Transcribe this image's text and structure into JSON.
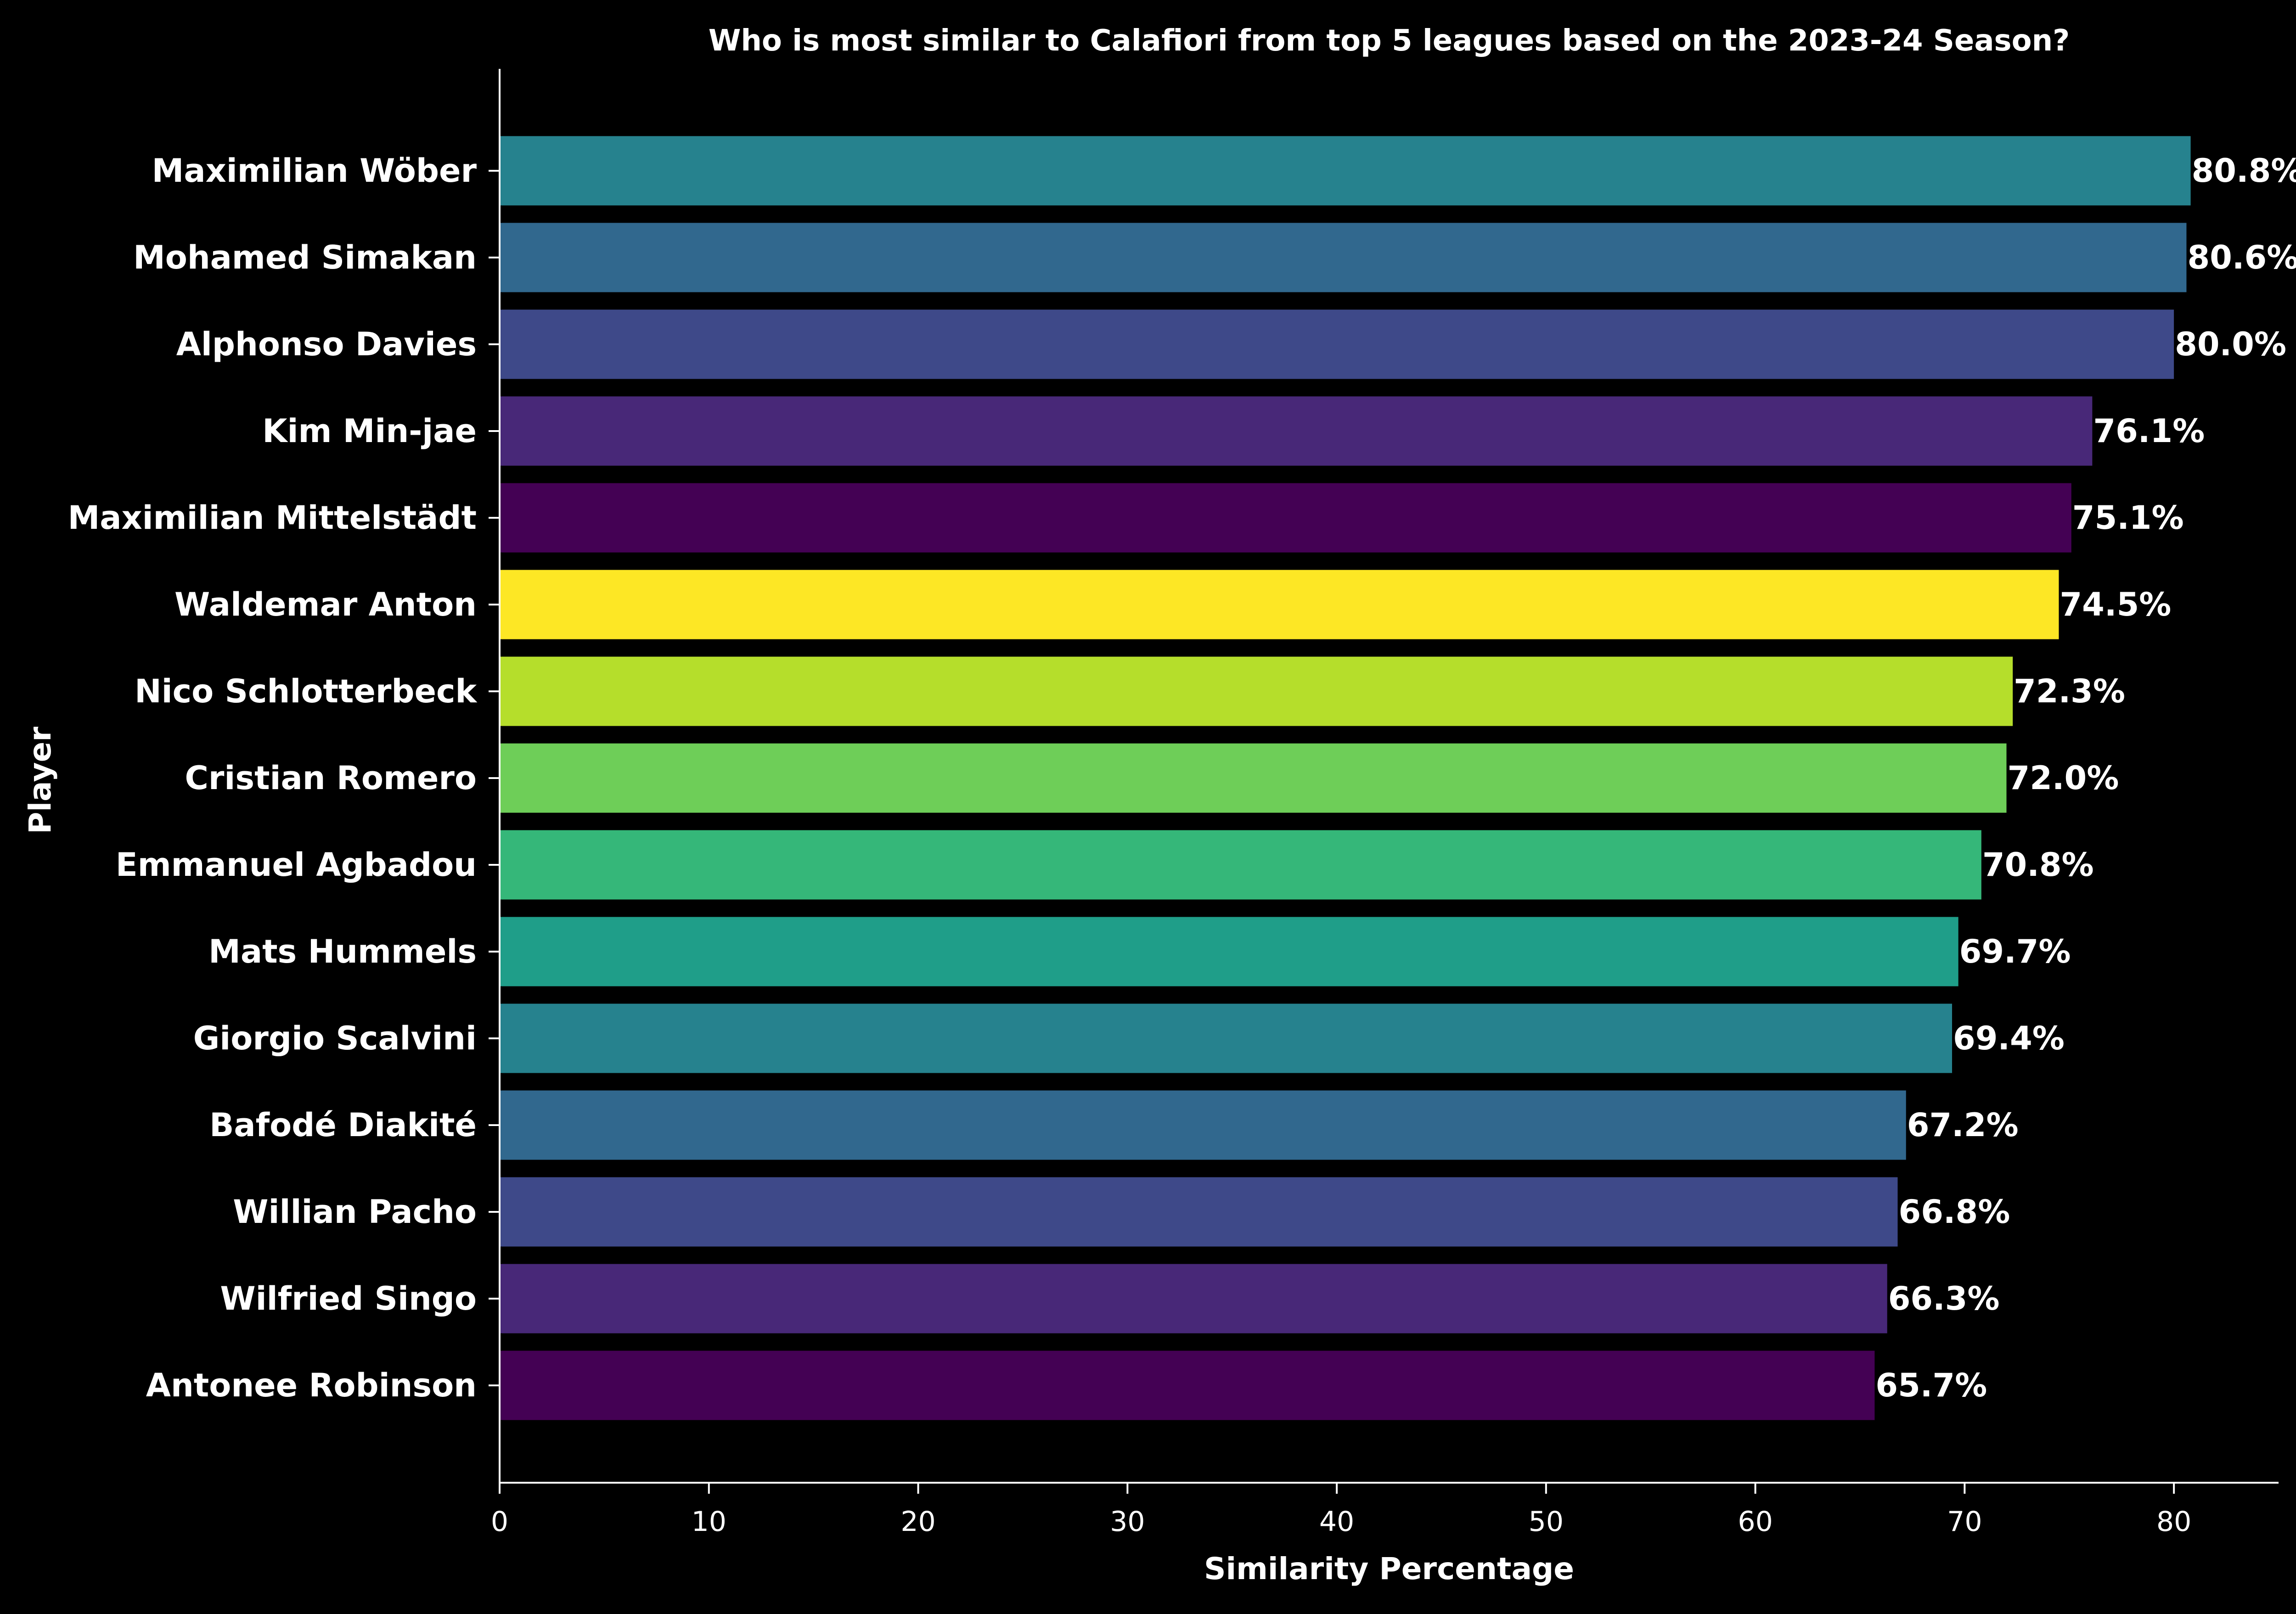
{
  "chart_data": {
    "type": "bar",
    "orientation": "horizontal",
    "title": "Who is most similar to Calafiori from top 5 leagues based on the 2023-24 Season?",
    "xlabel": "Similarity Percentage",
    "ylabel": "Player",
    "xlim": [
      0,
      85
    ],
    "xticks": [
      0,
      10,
      20,
      30,
      40,
      50,
      60,
      70,
      80
    ],
    "grid": false,
    "background": "#000000",
    "categories": [
      "Maximilian Wöber",
      "Mohamed Simakan",
      "Alphonso Davies",
      "Kim Min-jae",
      "Maximilian Mittelstädt",
      "Waldemar Anton",
      "Nico Schlotterbeck",
      "Cristian Romero",
      "Emmanuel Agbadou",
      "Mats Hummels",
      "Giorgio Scalvini",
      "Bafodé Diakité",
      "Willian Pacho",
      "Wilfried Singo",
      "Antonee Robinson"
    ],
    "values": [
      80.8,
      80.6,
      80.0,
      76.1,
      75.1,
      74.5,
      72.3,
      72.0,
      70.8,
      69.7,
      69.4,
      67.2,
      66.8,
      66.3,
      65.7
    ],
    "data_labels": [
      "80.8%",
      "80.6%",
      "80.0%",
      "76.1%",
      "75.1%",
      "74.5%",
      "72.3%",
      "72.0%",
      "70.8%",
      "69.7%",
      "69.4%",
      "67.2%",
      "66.8%",
      "66.3%",
      "65.7%"
    ],
    "colors": [
      "#26828e",
      "#31688e",
      "#3e4989",
      "#482878",
      "#440154",
      "#fde725",
      "#b5de2b",
      "#6ece58",
      "#35b779",
      "#1f9e89",
      "#26828e",
      "#31688e",
      "#3e4989",
      "#482878",
      "#440154"
    ]
  }
}
